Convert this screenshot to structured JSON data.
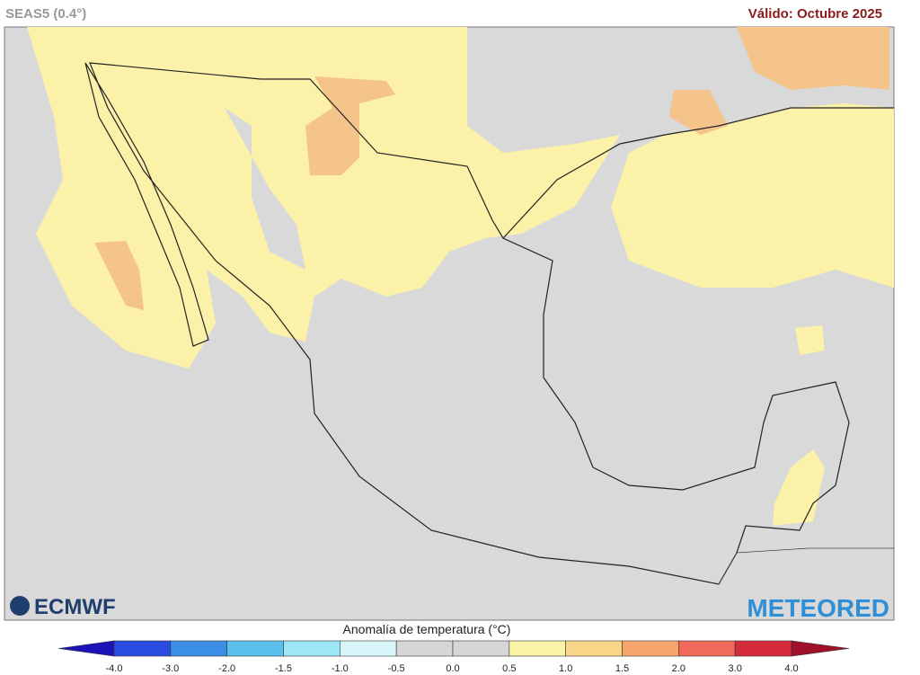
{
  "header": {
    "model": "SEAS5 (0.4°)",
    "valid": "Válido: Octubre 2025"
  },
  "logos": {
    "left": "ECMWF",
    "right": "METEORED"
  },
  "colorbar": {
    "title": "Anomalía de temperatura (°C)",
    "labels": [
      "-4.0",
      "-3.0",
      "-2.0",
      "-1.5",
      "-1.0",
      "-0.5",
      "0.0",
      "0.5",
      "1.0",
      "1.5",
      "2.0",
      "3.0",
      "4.0"
    ],
    "colors": [
      "#1c13b8",
      "#2a4be0",
      "#3a8ee6",
      "#5cc0ee",
      "#9de6f7",
      "#d8f6fa",
      "#d6d6d6",
      "#d6d6d6",
      "#fbf3a6",
      "#fad68a",
      "#f7a56a",
      "#ef6a5a",
      "#d42a3a",
      "#a0102a"
    ]
  }
}
